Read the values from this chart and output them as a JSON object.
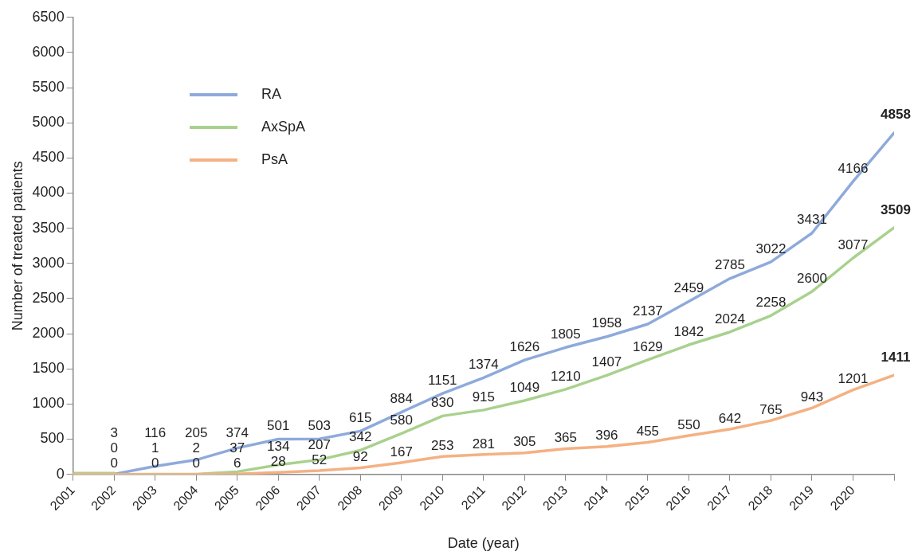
{
  "chart_data": {
    "type": "line",
    "xlabel": "Date (year)",
    "ylabel": "Number of treated patients",
    "x": [
      2001,
      2002,
      2003,
      2004,
      2005,
      2006,
      2007,
      2008,
      2009,
      2010,
      2011,
      2012,
      2013,
      2014,
      2015,
      2016,
      2017,
      2018,
      2019,
      2020,
      2021
    ],
    "xlim": [
      2001,
      2021
    ],
    "xticks": [
      2001,
      2002,
      2003,
      2004,
      2005,
      2006,
      2007,
      2008,
      2009,
      2010,
      2011,
      2012,
      2013,
      2014,
      2015,
      2016,
      2017,
      2018,
      2019,
      2020,
      {
        "value": 2021,
        "label": null
      }
    ],
    "ylim": [
      0,
      6500
    ],
    "yticks": [
      0,
      500,
      1000,
      1500,
      2000,
      2500,
      3000,
      3500,
      4000,
      4500,
      5000,
      5500,
      6000,
      6500
    ],
    "grid": false,
    "legend": "top left",
    "marker": "none",
    "line_style": "solid",
    "series": [
      {
        "name": "RA",
        "color": "#8eaadb",
        "values": [
          0,
          3,
          116,
          205,
          374,
          501,
          503,
          615,
          884,
          1151,
          1374,
          1626,
          1805,
          1958,
          2137,
          2459,
          2785,
          3022,
          3431,
          4166,
          4858
        ],
        "value_labels": [
          null,
          "3",
          "116",
          "205",
          "374",
          "501",
          "503",
          "615",
          "884",
          "1151",
          "1374",
          "1626",
          "1805",
          "1958",
          "2137",
          "2459",
          "2785",
          "3022",
          "3431",
          "4166",
          "4858"
        ]
      },
      {
        "name": "AxSpA",
        "color": "#a9d18e",
        "values": [
          0,
          0,
          1,
          2,
          37,
          134,
          207,
          342,
          580,
          830,
          915,
          1049,
          1210,
          1407,
          1629,
          1842,
          2024,
          2258,
          2600,
          3077,
          3509
        ],
        "value_labels": [
          null,
          "0",
          "1",
          "2",
          "37",
          "134",
          "207",
          "342",
          "580",
          "830",
          "915",
          "1049",
          "1210",
          "1407",
          "1629",
          "1842",
          "2024",
          "2258",
          "2600",
          "3077",
          "3509"
        ]
      },
      {
        "name": "PsA",
        "color": "#f4b183",
        "values": [
          0,
          0,
          0,
          0,
          6,
          28,
          52,
          92,
          167,
          253,
          281,
          305,
          365,
          396,
          455,
          550,
          642,
          765,
          943,
          1201,
          1411
        ],
        "value_labels": [
          null,
          "0",
          "0",
          "0",
          "6",
          "28",
          "52",
          "92",
          "167",
          "253",
          "281",
          "305",
          "365",
          "396",
          "455",
          "550",
          "642",
          "765",
          "943",
          "1201",
          "1411"
        ]
      }
    ]
  }
}
